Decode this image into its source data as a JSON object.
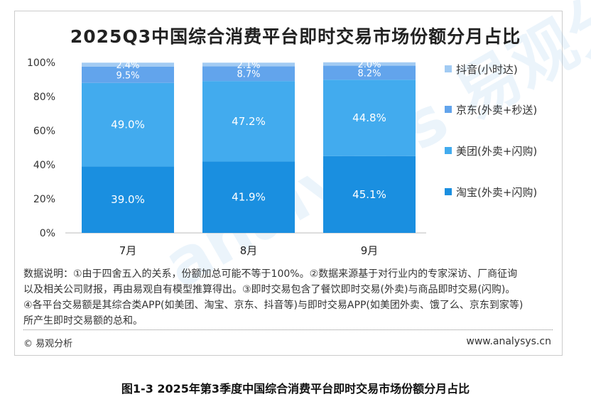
{
  "chart_data": {
    "type": "bar",
    "stacked": true,
    "title": "2025Q3中国综合消费平台即时交易市场份额分月占比",
    "categories": [
      "7月",
      "8月",
      "9月"
    ],
    "ylim": [
      0,
      100
    ],
    "yticks": [
      "0%",
      "20%",
      "40%",
      "60%",
      "80%",
      "100%"
    ],
    "legend_position": "right",
    "series": [
      {
        "name": "淘宝(外卖+闪购)",
        "values": [
          39.0,
          41.9,
          45.1
        ],
        "labels": [
          "39.0%",
          "41.9%",
          "45.1%"
        ],
        "color": "#1a8fe0"
      },
      {
        "name": "美团(外卖+闪购)",
        "values": [
          49.0,
          47.2,
          44.8
        ],
        "labels": [
          "49.0%",
          "47.2%",
          "44.8%"
        ],
        "color": "#42abee"
      },
      {
        "name": "京东(外卖+秒送)",
        "values": [
          9.5,
          8.7,
          8.2
        ],
        "labels": [
          "9.5%",
          "8.7%",
          "8.2%"
        ],
        "color": "#62a4ec"
      },
      {
        "name": "抖音(小时达)",
        "values": [
          2.4,
          2.1,
          2.0
        ],
        "labels": [
          "2.4%",
          "2.1%",
          "2.0%"
        ],
        "color": "#a2cbf3"
      }
    ]
  },
  "notes": [
    "数据说明：①由于四舍五入的关系，份额加总可能不等于100%。②数据来源基于对行业内的专家深访、厂商征询",
    "以及相关公司财报，再由易观自有模型推算得出。③即时交易包含了餐饮即时交易(外卖)与商品即时交易(闪购)。",
    "④各平台交易额是其综合类APP(如美团、淘宝、京东、抖音等)与即时交易APP(如美团外卖、饿了么、京东到家等)",
    "所产生即时交易额的总和。"
  ],
  "copyright": "© 易观分析",
  "website": "www.analysys.cn",
  "watermark": "analysys 易观分析",
  "caption": "图1-3 2025年第3季度中国综合消费平台即时交易市场份额分月占比"
}
